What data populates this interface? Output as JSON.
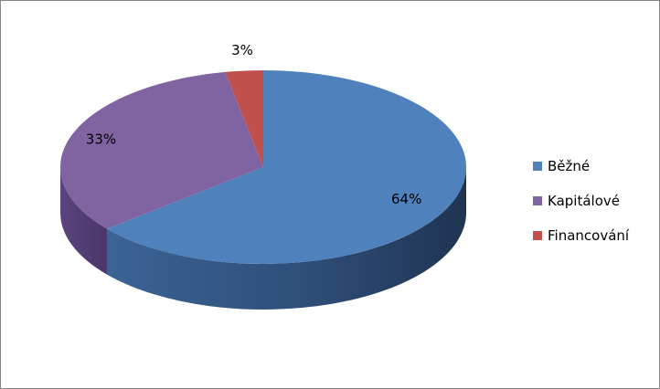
{
  "chart_data": {
    "type": "pie",
    "style": "3d",
    "legend_position": "right",
    "slices": [
      {
        "label": "Běžné",
        "value": 64,
        "value_label": "64%",
        "color": "#4F81BD",
        "side_color": "#2E4F78"
      },
      {
        "label": "Kapitálové",
        "value": 33,
        "value_label": "33%",
        "color": "#8064A2",
        "side_color": "#553F73"
      },
      {
        "label": "Financování",
        "value": 3,
        "value_label": "3%",
        "color": "#C0504D",
        "side_color": "#8A3432"
      }
    ]
  }
}
